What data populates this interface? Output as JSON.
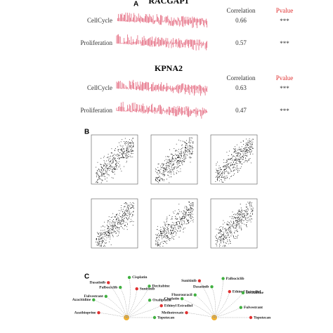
{
  "panel_a": {
    "label": "A",
    "groups": [
      {
        "title": "RACGAP1",
        "correlation_header": "Correlation",
        "pvalue_header": "Pvalue",
        "rows": [
          {
            "name": "CellCycle",
            "correlation": 0.66,
            "pvalue": "***"
          },
          {
            "name": "Proliferation",
            "correlation": 0.57,
            "pvalue": "***"
          }
        ]
      },
      {
        "title": "KPNA2",
        "correlation_header": "Correlation",
        "pvalue_header": "Pvalue",
        "rows": [
          {
            "name": "CellCycle",
            "correlation": 0.63,
            "pvalue": "***"
          },
          {
            "name": "Proliferation",
            "correlation": 0.47,
            "pvalue": "***"
          }
        ]
      }
    ]
  },
  "panel_b": {
    "label": "B"
  },
  "panel_c": {
    "label": "C",
    "networks": [
      {
        "drugs": [
          "Azathioprine",
          "Azacitidine",
          "Fulvestrant",
          "Dasatinib",
          "Palbociclib",
          "Cisplatin",
          "Sunitinib",
          "Decitabine",
          "Oxaliplatin",
          "Ethinyl Estradiol",
          "Topotecan"
        ]
      },
      {
        "drugs": [
          "Methotrexate",
          "Cisplatin",
          "Fluorouracil",
          "Sunitinib",
          "Dasatinib",
          "Palbociclib",
          "Ethinyl Estradiol",
          "Decitabine",
          "Fulvestrant",
          "Topotecan"
        ]
      }
    ]
  }
}
